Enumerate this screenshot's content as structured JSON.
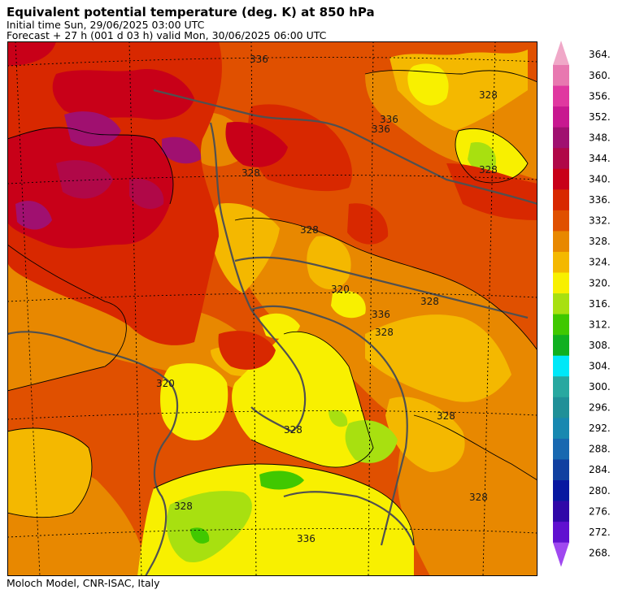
{
  "header": {
    "title": "Equivalent potential temperature (deg. K) at 850 hPa",
    "initial_time": "Initial time  Sun, 29/06/2025  03:00 UTC",
    "forecast": "Forecast  +  27 h  (001 d 03 h)  valid Mon, 30/06/2025 06:00 UTC"
  },
  "footer": {
    "credit": "Moloch Model, CNR-ISAC, Italy"
  },
  "colorbar": {
    "labels": [
      "364.",
      "360.",
      "356.",
      "352.",
      "348.",
      "344.",
      "340.",
      "336.",
      "332.",
      "328.",
      "324.",
      "320.",
      "316.",
      "312.",
      "308.",
      "304.",
      "300.",
      "296.",
      "292.",
      "288.",
      "284.",
      "280.",
      "276.",
      "272.",
      "268."
    ],
    "colors": [
      "#f0a8c8",
      "#e878b0",
      "#e038a0",
      "#c81890",
      "#a01070",
      "#b00848",
      "#c80018",
      "#d82800",
      "#e05000",
      "#e88800",
      "#f4b800",
      "#f8f000",
      "#a8e010",
      "#40c800",
      "#10b020",
      "#00e8f8",
      "#28a8a0",
      "#209098",
      "#1888b0",
      "#1868b0",
      "#1040a0",
      "#0818a0",
      "#3008a8",
      "#6010d0",
      "#a048f0"
    ]
  },
  "map": {
    "contour_labels": [
      "336",
      "328",
      "336",
      "336",
      "328",
      "328",
      "328",
      "320",
      "328",
      "336",
      "328",
      "328",
      "320",
      "328",
      "328",
      "336",
      "328"
    ]
  }
}
